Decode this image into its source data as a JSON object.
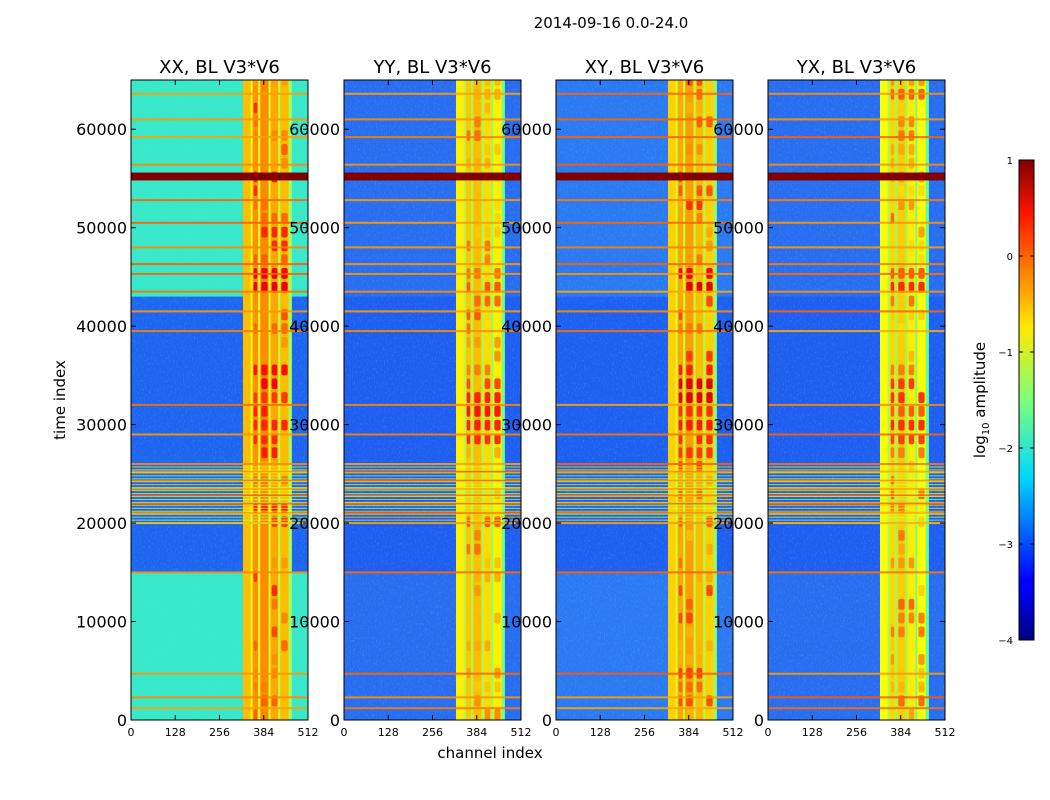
{
  "suptitle": "2014-09-16 0.0-24.0",
  "chart_data": {
    "type": "heatmap",
    "title": "2014-09-16 0.0-24.0",
    "xlabel": "channel index",
    "ylabel": "time index",
    "xlim": [
      0,
      512
    ],
    "ylim": [
      0,
      65000
    ],
    "x_ticks": [
      0,
      128,
      256,
      384,
      512
    ],
    "y_ticks": [
      0,
      10000,
      20000,
      30000,
      40000,
      50000,
      60000
    ],
    "y_tick_labels": [
      "0",
      "10000",
      "20000",
      "30000",
      "40000",
      "50000",
      "60000"
    ],
    "panels": [
      {
        "title": "XX, BL V3*V6",
        "background": "#39e8c8",
        "mid_background": "#1e64f0",
        "band_level": 0.95,
        "hot_level": 1.4
      },
      {
        "title": "YY, BL V3*V6",
        "background": "#2a6cf0",
        "mid_background": "#1f5cf0",
        "band_level": 0.7,
        "hot_level": 1.05
      },
      {
        "title": "XY, BL V3*V6",
        "background": "#2c78f2",
        "mid_background": "#1e5ef0",
        "band_level": 0.85,
        "hot_level": 1.35
      },
      {
        "title": "YX, BL V3*V6",
        "background": "#2a6cf0",
        "mid_background": "#1f5cf0",
        "band_level": 0.62,
        "hot_level": 0.9
      }
    ],
    "strong_rfi_rows": [
      54800,
      55600
    ],
    "rfi_lines": [
      1200,
      2300,
      4700,
      15000,
      20000,
      21000,
      22000,
      22800,
      23500,
      24300,
      25200,
      26000,
      29000,
      32000,
      39500,
      41500,
      43500,
      45300,
      46300,
      48000,
      50500,
      52800,
      56400,
      59200,
      61000,
      63600
    ],
    "colorbar": {
      "label_main": "log",
      "label_sub": "10",
      "label_rest": " amplitude",
      "min": -4,
      "max": 1,
      "ticks": [
        1,
        0,
        -1,
        -2,
        -3,
        -4
      ],
      "tick_labels": [
        "1",
        "0",
        "−1",
        "−2",
        "−3",
        "−4"
      ],
      "colormap": "jet"
    }
  }
}
